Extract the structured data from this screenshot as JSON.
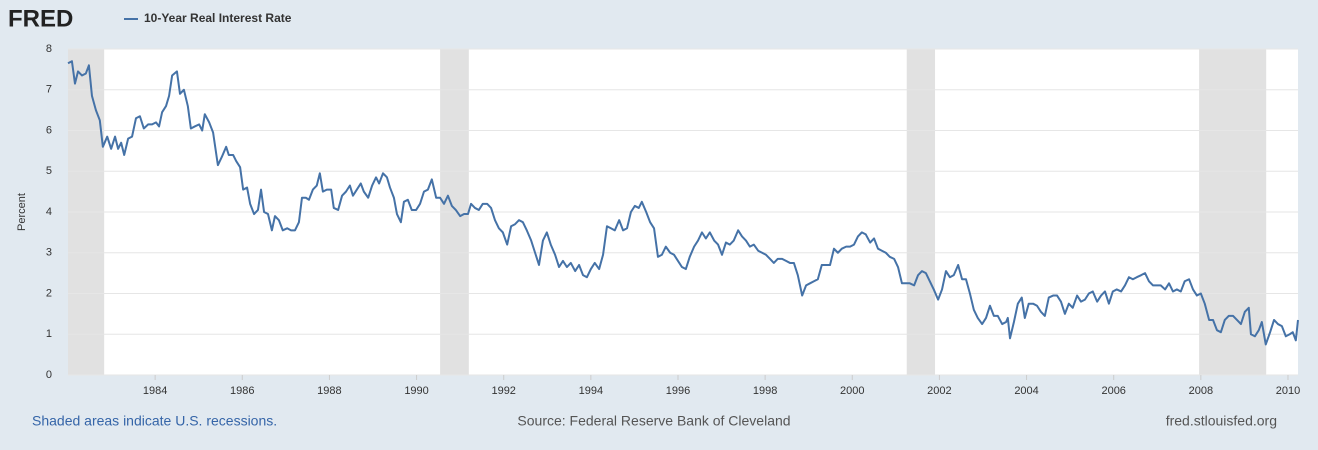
{
  "chart_data": {
    "type": "line",
    "logo": "FRED",
    "y_label": "Percent",
    "note": "Shaded areas indicate U.S. recessions.",
    "source": "Source: Federal Reserve Bank of Cleveland",
    "url": "fred.stlouisfed.org",
    "xlim": [
      1982,
      2010.23
    ],
    "xticks": [
      1984,
      1986,
      1988,
      1990,
      1992,
      1994,
      1996,
      1998,
      2000,
      2002,
      2004,
      2006,
      2008,
      2010
    ],
    "ylim": [
      0,
      8
    ],
    "yticks": [
      0,
      1,
      2,
      3,
      4,
      5,
      6,
      7,
      8
    ],
    "grid": true,
    "recessions": [
      [
        1981.54,
        1982.83
      ],
      [
        1990.54,
        1991.2
      ],
      [
        2001.25,
        2001.9
      ],
      [
        2007.96,
        2009.5
      ]
    ],
    "x": [
      1982.0,
      1982.09,
      1982.16,
      1982.23,
      1982.32,
      1982.41,
      1982.48,
      1982.55,
      1982.64,
      1982.73,
      1982.8,
      1982.9,
      1982.99,
      1983.08,
      1983.15,
      1983.22,
      1983.29,
      1983.38,
      1983.47,
      1983.56,
      1983.65,
      1983.74,
      1983.84,
      1983.93,
      1984.02,
      1984.09,
      1984.16,
      1984.25,
      1984.32,
      1984.39,
      1984.5,
      1984.57,
      1984.66,
      1984.75,
      1984.82,
      1984.91,
      1985.01,
      1985.08,
      1985.14,
      1985.24,
      1985.33,
      1985.44,
      1985.53,
      1985.63,
      1985.69,
      1985.79,
      1985.86,
      1985.95,
      1986.02,
      1986.11,
      1986.18,
      1986.27,
      1986.36,
      1986.43,
      1986.5,
      1986.59,
      1986.68,
      1986.75,
      1986.84,
      1986.93,
      1987.03,
      1987.12,
      1987.21,
      1987.3,
      1987.37,
      1987.46,
      1987.53,
      1987.62,
      1987.71,
      1987.78,
      1987.85,
      1987.94,
      1988.04,
      1988.1,
      1988.2,
      1988.29,
      1988.38,
      1988.47,
      1988.54,
      1988.63,
      1988.72,
      1988.79,
      1988.89,
      1988.98,
      1989.07,
      1989.14,
      1989.23,
      1989.32,
      1989.39,
      1989.48,
      1989.55,
      1989.64,
      1989.71,
      1989.8,
      1989.89,
      1989.99,
      1990.08,
      1990.17,
      1990.26,
      1990.35,
      1990.45,
      1990.54,
      1990.63,
      1990.72,
      1990.81,
      1990.9,
      1991.0,
      1991.09,
      1991.18,
      1991.25,
      1991.34,
      1991.43,
      1991.52,
      1991.62,
      1991.71,
      1991.8,
      1991.89,
      1991.98,
      1992.08,
      1992.17,
      1992.26,
      1992.35,
      1992.44,
      1992.53,
      1992.63,
      1992.72,
      1992.81,
      1992.9,
      1992.99,
      1993.08,
      1993.18,
      1993.27,
      1993.36,
      1993.45,
      1993.54,
      1993.64,
      1993.73,
      1993.82,
      1993.91,
      1994.0,
      1994.09,
      1994.19,
      1994.28,
      1994.37,
      1994.46,
      1994.55,
      1994.65,
      1994.74,
      1994.83,
      1994.92,
      1995.01,
      1995.1,
      1995.17,
      1995.27,
      1995.36,
      1995.45,
      1995.54,
      1995.63,
      1995.72,
      1995.82,
      1995.91,
      1996.0,
      1996.09,
      1996.18,
      1996.27,
      1996.37,
      1996.46,
      1996.55,
      1996.64,
      1996.73,
      1996.83,
      1996.92,
      1997.01,
      1997.1,
      1997.19,
      1997.28,
      1997.38,
      1997.47,
      1997.56,
      1997.65,
      1997.74,
      1997.84,
      1997.93,
      1998.02,
      1998.11,
      1998.2,
      1998.29,
      1998.39,
      1998.48,
      1998.57,
      1998.66,
      1998.75,
      1998.85,
      1998.94,
      1999.03,
      1999.12,
      1999.21,
      1999.3,
      1999.4,
      1999.49,
      1999.58,
      1999.67,
      1999.76,
      1999.86,
      1999.95,
      2000.04,
      2000.13,
      2000.22,
      2000.31,
      2000.41,
      2000.5,
      2000.59,
      2000.68,
      2000.77,
      2000.86,
      2000.96,
      2001.05,
      2001.14,
      2001.23,
      2001.32,
      2001.42,
      2001.51,
      2001.6,
      2001.69,
      2001.78,
      2001.87,
      2001.97,
      2002.06,
      2002.15,
      2002.24,
      2002.33,
      2002.43,
      2002.52,
      2002.61,
      2002.7,
      2002.79,
      2002.88,
      2002.98,
      2003.07,
      2003.16,
      2003.25,
      2003.34,
      2003.44,
      2003.53,
      2003.57,
      2003.62,
      2003.71,
      2003.8,
      2003.89,
      2003.96,
      2004.05,
      2004.15,
      2004.24,
      2004.33,
      2004.42,
      2004.51,
      2004.61,
      2004.7,
      2004.79,
      2004.88,
      2004.97,
      2005.06,
      2005.16,
      2005.25,
      2005.34,
      2005.43,
      2005.52,
      2005.62,
      2005.71,
      2005.8,
      2005.89,
      2005.98,
      2006.07,
      2006.17,
      2006.26,
      2006.35,
      2006.44,
      2006.53,
      2006.63,
      2006.72,
      2006.81,
      2006.9,
      2006.99,
      2007.08,
      2007.18,
      2007.27,
      2007.36,
      2007.45,
      2007.54,
      2007.63,
      2007.73,
      2007.82,
      2007.91,
      2008.0,
      2008.09,
      2008.19,
      2008.28,
      2008.37,
      2008.46,
      2008.55,
      2008.64,
      2008.74,
      2008.83,
      2008.92,
      2009.01,
      2009.1,
      2009.15,
      2009.24,
      2009.33,
      2009.4,
      2009.49,
      2009.59,
      2009.68,
      2009.77,
      2009.86,
      2009.95,
      2010.04,
      2010.11,
      2010.18,
      2010.23
    ],
    "series": [
      {
        "name": "10-Year Real Interest Rate",
        "color": "#4572a7",
        "values": [
          7.65,
          7.7,
          7.15,
          7.45,
          7.35,
          7.4,
          7.6,
          6.85,
          6.5,
          6.25,
          5.6,
          5.85,
          5.55,
          5.85,
          5.55,
          5.7,
          5.4,
          5.8,
          5.85,
          6.3,
          6.35,
          6.05,
          6.15,
          6.15,
          6.2,
          6.1,
          6.45,
          6.6,
          6.85,
          7.35,
          7.45,
          6.9,
          7.0,
          6.6,
          6.05,
          6.1,
          6.15,
          6.0,
          6.4,
          6.2,
          5.95,
          5.15,
          5.35,
          5.6,
          5.4,
          5.4,
          5.25,
          5.1,
          4.55,
          4.6,
          4.2,
          3.95,
          4.05,
          4.55,
          4.0,
          3.95,
          3.55,
          3.9,
          3.8,
          3.55,
          3.6,
          3.55,
          3.55,
          3.75,
          4.35,
          4.35,
          4.3,
          4.55,
          4.65,
          4.95,
          4.5,
          4.55,
          4.55,
          4.1,
          4.05,
          4.4,
          4.5,
          4.65,
          4.4,
          4.55,
          4.7,
          4.5,
          4.35,
          4.65,
          4.85,
          4.7,
          4.95,
          4.85,
          4.6,
          4.35,
          3.95,
          3.75,
          4.25,
          4.3,
          4.05,
          4.05,
          4.2,
          4.5,
          4.55,
          4.8,
          4.35,
          4.35,
          4.2,
          4.4,
          4.15,
          4.05,
          3.9,
          3.95,
          3.95,
          4.2,
          4.1,
          4.05,
          4.2,
          4.2,
          4.1,
          3.8,
          3.6,
          3.5,
          3.2,
          3.65,
          3.7,
          3.8,
          3.75,
          3.55,
          3.3,
          3.0,
          2.7,
          3.3,
          3.5,
          3.2,
          2.95,
          2.65,
          2.8,
          2.65,
          2.75,
          2.55,
          2.7,
          2.45,
          2.4,
          2.6,
          2.75,
          2.6,
          2.95,
          3.65,
          3.6,
          3.55,
          3.8,
          3.55,
          3.6,
          4.0,
          4.15,
          4.1,
          4.25,
          4.0,
          3.75,
          3.6,
          2.9,
          2.95,
          3.15,
          3.0,
          2.95,
          2.8,
          2.65,
          2.6,
          2.9,
          3.15,
          3.3,
          3.5,
          3.35,
          3.5,
          3.3,
          3.2,
          2.95,
          3.25,
          3.2,
          3.3,
          3.55,
          3.4,
          3.3,
          3.15,
          3.2,
          3.05,
          3.0,
          2.95,
          2.85,
          2.75,
          2.85,
          2.85,
          2.8,
          2.75,
          2.75,
          2.45,
          1.95,
          2.2,
          2.25,
          2.3,
          2.35,
          2.7,
          2.7,
          2.7,
          3.1,
          3.0,
          3.1,
          3.15,
          3.15,
          3.2,
          3.4,
          3.5,
          3.45,
          3.25,
          3.35,
          3.1,
          3.05,
          3.0,
          2.9,
          2.85,
          2.65,
          2.25,
          2.25,
          2.25,
          2.2,
          2.45,
          2.55,
          2.5,
          2.3,
          2.1,
          1.85,
          2.1,
          2.55,
          2.4,
          2.45,
          2.7,
          2.35,
          2.35,
          2.0,
          1.6,
          1.4,
          1.25,
          1.4,
          1.7,
          1.45,
          1.45,
          1.25,
          1.3,
          1.4,
          0.9,
          1.3,
          1.75,
          1.9,
          1.4,
          1.75,
          1.75,
          1.7,
          1.55,
          1.45,
          1.9,
          1.95,
          1.95,
          1.8,
          1.5,
          1.75,
          1.65,
          1.95,
          1.8,
          1.85,
          2.0,
          2.05,
          1.8,
          1.95,
          2.05,
          1.75,
          2.05,
          2.1,
          2.05,
          2.2,
          2.4,
          2.35,
          2.4,
          2.45,
          2.5,
          2.3,
          2.2,
          2.2,
          2.2,
          2.1,
          2.25,
          2.05,
          2.1,
          2.05,
          2.3,
          2.35,
          2.1,
          1.95,
          2.0,
          1.75,
          1.35,
          1.35,
          1.1,
          1.05,
          1.35,
          1.45,
          1.45,
          1.35,
          1.25,
          1.55,
          1.65,
          1.0,
          0.95,
          1.1,
          1.3,
          0.75,
          1.05,
          1.35,
          1.25,
          1.2,
          0.95,
          1.0,
          1.05,
          0.85,
          1.35
        ]
      }
    ]
  }
}
